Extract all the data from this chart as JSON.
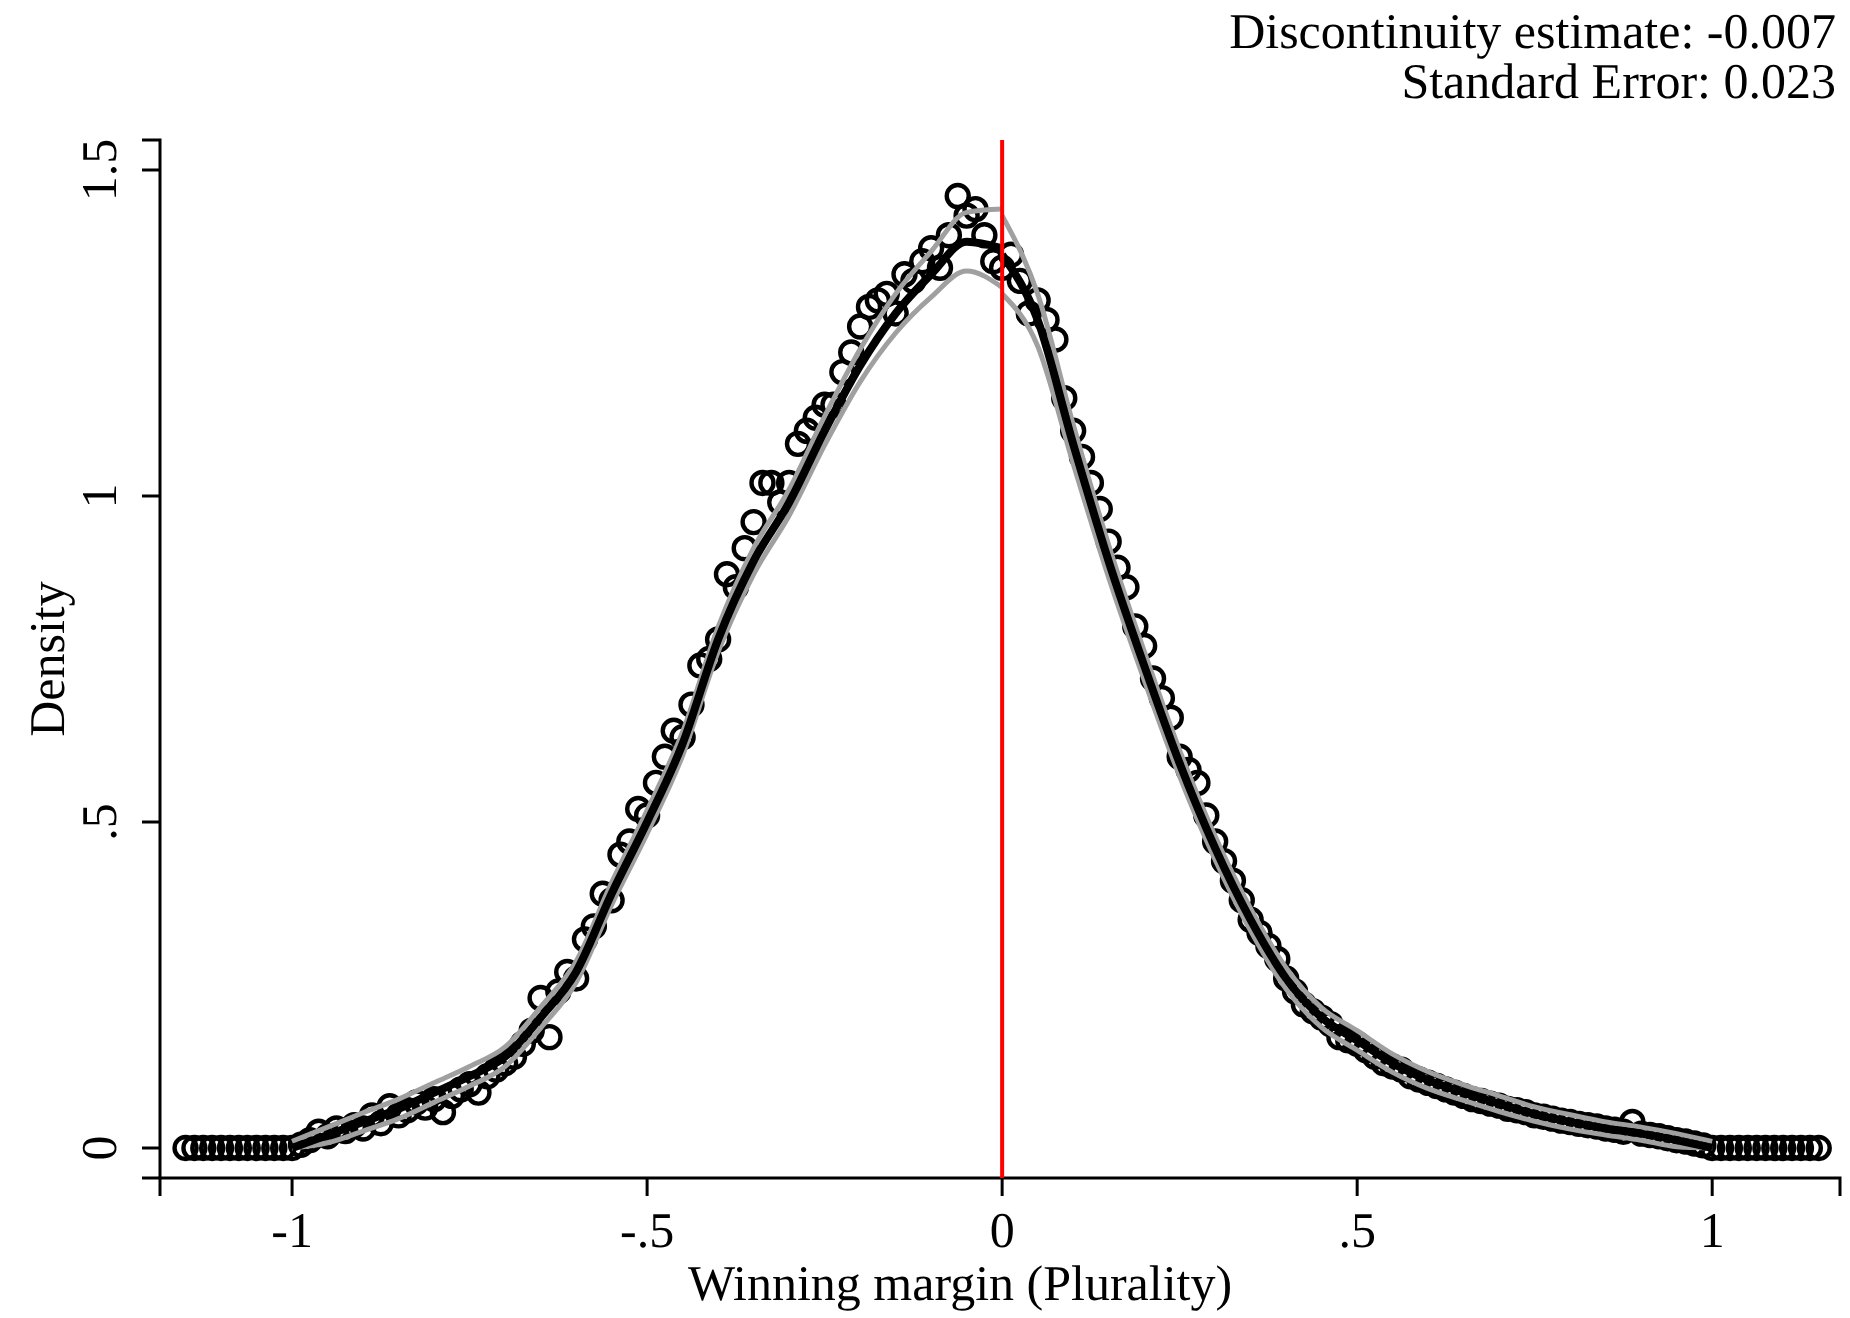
{
  "chart_data": {
    "type": "scatter",
    "xlabel": "Winning margin (Plurality)",
    "ylabel": "Density",
    "annotations": [
      "Discontinuity estimate: -0.007",
      "Standard Error: 0.023"
    ],
    "xlim": [
      -1.186,
      1.18
    ],
    "xticks": [
      {
        "value": -1,
        "label": "-1"
      },
      {
        "value": -0.5,
        "label": "-.5"
      },
      0,
      {
        "value": 0.5,
        "label": ".5"
      },
      1
    ],
    "ylim": [
      -0.046,
      1.546
    ],
    "yticks": [
      0,
      {
        "value": 0.5,
        "label": ".5"
      },
      1,
      1.5
    ],
    "grid": false,
    "ref_lines": [
      {
        "axis": "x",
        "value": 0,
        "color": "#ff0000"
      }
    ],
    "series": [
      {
        "marker": "circle",
        "color": "#000000",
        "x": [
          -1.15,
          -1.1375,
          -1.125,
          -1.1125,
          -1.1,
          -1.0875,
          -1.075,
          -1.0625,
          -1.05,
          -1.0375,
          -1.025,
          -1.0125,
          -1.0,
          -0.9875,
          -0.975,
          -0.9625,
          -0.95,
          -0.9375,
          -0.925,
          -0.9125,
          -0.9,
          -0.8875,
          -0.875,
          -0.8625,
          -0.85,
          -0.8375,
          -0.825,
          -0.8125,
          -0.8,
          -0.7875,
          -0.775,
          -0.7625,
          -0.75,
          -0.7375,
          -0.725,
          -0.7125,
          -0.7,
          -0.6875,
          -0.675,
          -0.6625,
          -0.65,
          -0.6375,
          -0.625,
          -0.6125,
          -0.6,
          -0.5875,
          -0.575,
          -0.5625,
          -0.55,
          -0.5375,
          -0.525,
          -0.5125,
          -0.5,
          -0.4875,
          -0.475,
          -0.4625,
          -0.45,
          -0.4375,
          -0.425,
          -0.4125,
          -0.4,
          -0.3875,
          -0.375,
          -0.3625,
          -0.35,
          -0.3375,
          -0.325,
          -0.3125,
          -0.3,
          -0.2875,
          -0.275,
          -0.2625,
          -0.25,
          -0.2375,
          -0.225,
          -0.2125,
          -0.2,
          -0.1875,
          -0.175,
          -0.1625,
          -0.15,
          -0.1375,
          -0.125,
          -0.1125,
          -0.1,
          -0.0875,
          -0.075,
          -0.0625,
          -0.05,
          -0.0375,
          -0.025,
          -0.0125,
          0,
          0.0125,
          0.025,
          0.0375,
          0.05,
          0.0625,
          0.075,
          0.0875,
          0.1,
          0.1125,
          0.125,
          0.1375,
          0.15,
          0.1625,
          0.175,
          0.1875,
          0.2,
          0.2125,
          0.225,
          0.2375,
          0.25,
          0.2625,
          0.275,
          0.2875,
          0.3,
          0.3125,
          0.325,
          0.3375,
          0.35,
          0.3625,
          0.375,
          0.3875,
          0.4,
          0.4125,
          0.425,
          0.4375,
          0.45,
          0.4625,
          0.475,
          0.4875,
          0.5,
          0.5125,
          0.525,
          0.5375,
          0.55,
          0.5625,
          0.575,
          0.5875,
          0.6,
          0.6125,
          0.625,
          0.6375,
          0.65,
          0.6625,
          0.675,
          0.6875,
          0.7,
          0.7125,
          0.725,
          0.7375,
          0.75,
          0.7625,
          0.775,
          0.7875,
          0.8,
          0.8125,
          0.825,
          0.8375,
          0.85,
          0.8625,
          0.875,
          0.8875,
          0.9,
          0.9125,
          0.925,
          0.9375,
          0.95,
          0.9625,
          0.975,
          0.9875,
          1.0,
          1.0125,
          1.025,
          1.0375,
          1.05,
          1.0625,
          1.075,
          1.0875,
          1.1,
          1.1125,
          1.125,
          1.1375,
          1.15
        ],
        "values": [
          0,
          0,
          0,
          0,
          0,
          0,
          0,
          0,
          0,
          0,
          0,
          0,
          0,
          0.005,
          0.012,
          0.025,
          0.018,
          0.03,
          0.026,
          0.035,
          0.03,
          0.05,
          0.038,
          0.064,
          0.05,
          0.058,
          0.07,
          0.062,
          0.075,
          0.055,
          0.08,
          0.09,
          0.098,
          0.085,
          0.11,
          0.12,
          0.13,
          0.14,
          0.16,
          0.18,
          0.23,
          0.17,
          0.24,
          0.27,
          0.26,
          0.32,
          0.34,
          0.39,
          0.38,
          0.45,
          0.47,
          0.52,
          0.51,
          0.56,
          0.6,
          0.64,
          0.63,
          0.68,
          0.74,
          0.75,
          0.78,
          0.88,
          0.86,
          0.92,
          0.96,
          1.02,
          1.02,
          0.99,
          1.02,
          1.08,
          1.1,
          1.12,
          1.14,
          1.14,
          1.19,
          1.22,
          1.26,
          1.29,
          1.3,
          1.31,
          1.28,
          1.34,
          1.33,
          1.36,
          1.38,
          1.35,
          1.4,
          1.46,
          1.43,
          1.44,
          1.4,
          1.36,
          1.35,
          1.37,
          1.33,
          1.28,
          1.3,
          1.27,
          1.24,
          1.15,
          1.1,
          1.06,
          1.02,
          0.98,
          0.93,
          0.89,
          0.86,
          0.8,
          0.77,
          0.72,
          0.69,
          0.66,
          0.6,
          0.58,
          0.56,
          0.51,
          0.47,
          0.44,
          0.41,
          0.38,
          0.35,
          0.33,
          0.31,
          0.29,
          0.26,
          0.24,
          0.22,
          0.21,
          0.2,
          0.19,
          0.17,
          0.165,
          0.16,
          0.15,
          0.14,
          0.13,
          0.125,
          0.12,
          0.11,
          0.105,
          0.1,
          0.095,
          0.09,
          0.085,
          0.08,
          0.075,
          0.072,
          0.068,
          0.065,
          0.06,
          0.058,
          0.055,
          0.05,
          0.048,
          0.045,
          0.042,
          0.04,
          0.037,
          0.035,
          0.033,
          0.03,
          0.028,
          0.025,
          0.04,
          0.022,
          0.02,
          0.018,
          0.015,
          0.012,
          0.01,
          0.007,
          0.004,
          0,
          0,
          0,
          0,
          0,
          0,
          0,
          0,
          0,
          0,
          0,
          0,
          0
        ]
      },
      {
        "type": "line",
        "color": "#a0a0a0",
        "x": [
          -1,
          -0.95,
          -0.9,
          -0.85,
          -0.8,
          -0.75,
          -0.7,
          -0.65,
          -0.6,
          -0.55,
          -0.5,
          -0.45,
          -0.4,
          -0.35,
          -0.3,
          -0.25,
          -0.2,
          -0.15,
          -0.1,
          -0.05,
          0
        ],
        "values": [
          0.01,
          0.032,
          0.054,
          0.075,
          0.1,
          0.125,
          0.155,
          0.216,
          0.286,
          0.407,
          0.518,
          0.638,
          0.799,
          0.92,
          1.01,
          1.122,
          1.225,
          1.31,
          1.375,
          1.435,
          1.44
        ]
      },
      {
        "type": "line",
        "color": "#a0a0a0",
        "x": [
          -1,
          -0.95,
          -0.9,
          -0.85,
          -0.8,
          -0.75,
          -0.7,
          -0.65,
          -0.6,
          -0.55,
          -0.5,
          -0.45,
          -0.4,
          -0.35,
          -0.3,
          -0.25,
          -0.2,
          -0.15,
          -0.1,
          -0.05,
          0
        ],
        "values": [
          0,
          0.008,
          0.026,
          0.045,
          0.07,
          0.095,
          0.125,
          0.184,
          0.254,
          0.373,
          0.482,
          0.602,
          0.761,
          0.88,
          0.97,
          1.078,
          1.175,
          1.25,
          1.305,
          1.345,
          1.32
        ]
      },
      {
        "type": "line",
        "color": "#a0a0a0",
        "x": [
          0,
          0.05,
          0.1,
          0.15,
          0.2,
          0.25,
          0.3,
          0.35,
          0.4,
          0.45,
          0.5,
          0.55,
          0.6,
          0.65,
          0.7,
          0.75,
          0.8,
          0.85,
          0.9,
          0.95,
          1
        ],
        "values": [
          1.43,
          1.31,
          1.11,
          0.925,
          0.762,
          0.61,
          0.478,
          0.367,
          0.276,
          0.215,
          0.18,
          0.144,
          0.117,
          0.097,
          0.08,
          0.063,
          0.051,
          0.04,
          0.032,
          0.022,
          0.01
        ]
      },
      {
        "type": "line",
        "color": "#a0a0a0",
        "x": [
          0,
          0.05,
          0.1,
          0.15,
          0.2,
          0.25,
          0.3,
          0.35,
          0.4,
          0.45,
          0.5,
          0.55,
          0.6,
          0.65,
          0.7,
          0.75,
          0.8,
          0.85,
          0.9,
          0.95,
          1
        ],
        "values": [
          1.31,
          1.23,
          1.05,
          0.875,
          0.718,
          0.57,
          0.442,
          0.333,
          0.244,
          0.185,
          0.15,
          0.116,
          0.091,
          0.073,
          0.056,
          0.041,
          0.029,
          0.02,
          0.012,
          0.002,
          0
        ]
      },
      {
        "type": "line",
        "color": "#000000",
        "x": [
          -1,
          -0.95,
          -0.9,
          -0.85,
          -0.8,
          -0.75,
          -0.7,
          -0.65,
          -0.6,
          -0.55,
          -0.5,
          -0.45,
          -0.4,
          -0.35,
          -0.3,
          -0.25,
          -0.2,
          -0.15,
          -0.1,
          -0.05,
          0
        ],
        "values": [
          0,
          0.02,
          0.04,
          0.06,
          0.085,
          0.11,
          0.14,
          0.2,
          0.27,
          0.39,
          0.5,
          0.62,
          0.78,
          0.9,
          0.99,
          1.1,
          1.2,
          1.28,
          1.34,
          1.39,
          1.38
        ]
      },
      {
        "type": "line",
        "color": "#000000",
        "x": [
          0,
          0.05,
          0.1,
          0.15,
          0.2,
          0.25,
          0.3,
          0.35,
          0.4,
          0.45,
          0.5,
          0.55,
          0.6,
          0.65,
          0.7,
          0.75,
          0.8,
          0.85,
          0.9,
          0.95,
          1
        ],
        "values": [
          1.37,
          1.27,
          1.08,
          0.9,
          0.74,
          0.59,
          0.46,
          0.35,
          0.26,
          0.2,
          0.165,
          0.13,
          0.104,
          0.085,
          0.068,
          0.052,
          0.04,
          0.03,
          0.022,
          0.012,
          0
        ]
      }
    ]
  }
}
